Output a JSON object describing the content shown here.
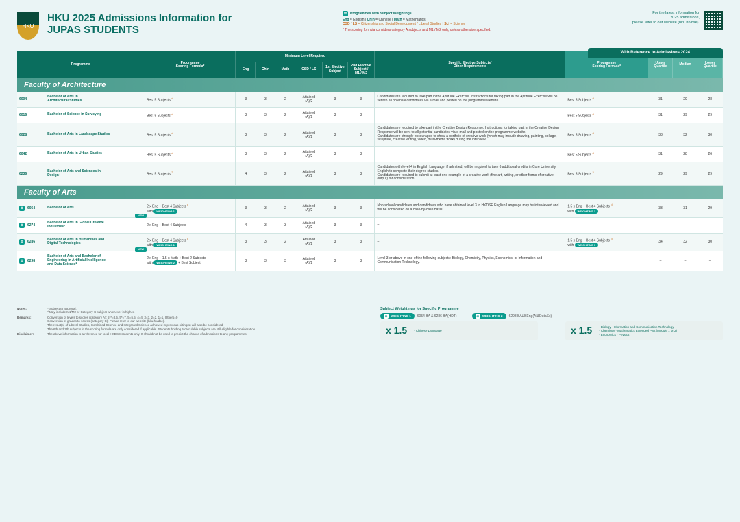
{
  "header": {
    "title_line1": "HKU 2025 Admissions Information for",
    "title_line2": "JUPAS STUDENTS"
  },
  "legend": {
    "pw_label": "Programmes with Subject Weightings",
    "line1_html": "Eng = English | Chin = Chinese | Math = Mathematics",
    "line2_html": "CSD / LS = Citizenship and Social Development / Liberal Studies | Sci = Science",
    "note": "* The scoring formula considers category A subjects and M1 / M2 only, unless otherwise specified."
  },
  "right_info": {
    "l1": "For the latest information for",
    "l2": "2025 admissions,",
    "l3": "please refer to our website (hku.hk/dse)."
  },
  "ref_bar": "With Reference to Admissions 2024",
  "thead": {
    "programme": "Programme",
    "formula": "Programme\nScoring Formula*",
    "mlr": "Minimum Level Required",
    "eng": "Eng",
    "chin": "Chin",
    "math": "Math",
    "csd": "CSD / LS",
    "el1": "1st Elective\nSubject",
    "el2": "2nd Elective\nSubject /\nM1 / M2",
    "spec": "Specific Elective Subjects/\nOther Requirements",
    "formula2": "Programme\nScoring Formula*",
    "uq": "Upper\nQuartile",
    "med": "Median",
    "lq": "Lower\nQuartile"
  },
  "faculties": [
    {
      "name": "Faculty of Architecture",
      "rows": [
        {
          "pw": false,
          "new": false,
          "code": "6004",
          "pname": "Bachelor of Arts in\nArchitectural Studies",
          "formula": "Best 5 Subjects",
          "sup": "d",
          "wb": "",
          "eng": "3",
          "chin": "3",
          "math": "2",
          "csd": "Attained\n(A)/2",
          "e1": "3",
          "e2": "3",
          "req": "Candidates are required to take part in the Aptitude Exercise. Instructions for taking part in the Aptitude Exercise will be sent to all potential candidates via e-mail and posted on the programme website.",
          "formula2": "Best 5 Subjects",
          "sup2": "d",
          "wb2": "",
          "uq": "31",
          "med": "29",
          "lq": "28"
        },
        {
          "pw": false,
          "new": false,
          "code": "6016",
          "pname": "Bachelor of Science in Surveying",
          "formula": "Best 5 Subjects",
          "sup": "d",
          "wb": "",
          "eng": "3",
          "chin": "3",
          "math": "2",
          "csd": "Attained\n(A)/2",
          "e1": "3",
          "e2": "3",
          "req": "–",
          "formula2": "Best 5 Subjects",
          "sup2": "d",
          "wb2": "",
          "uq": "31",
          "med": "29",
          "lq": "29"
        },
        {
          "pw": false,
          "new": false,
          "code": "6028",
          "pname": "Bachelor of Arts in Landscape Studies",
          "formula": "Best 5 Subjects",
          "sup": "d",
          "wb": "",
          "eng": "3",
          "chin": "3",
          "math": "2",
          "csd": "Attained\n(A)/2",
          "e1": "3",
          "e2": "3",
          "req": "Candidates are required to take part in the Creative Design Response. Instructions for taking part in the Creative Design Response will be sent to all potential candidates via e-mail and posted on the programme website.\nCandidates are strongly encouraged to show a portfolio of creative work (which may include drawing, painting, collage, sculpture, creative writing, video, multi-media work) during the interview.",
          "formula2": "Best 5 Subjects",
          "sup2": "d",
          "wb2": "",
          "uq": "33",
          "med": "32",
          "lq": "30"
        },
        {
          "pw": false,
          "new": false,
          "code": "6042",
          "pname": "Bachelor of Arts in Urban Studies",
          "formula": "Best 5 Subjects",
          "sup": "d",
          "wb": "",
          "eng": "3",
          "chin": "3",
          "math": "2",
          "csd": "Attained\n(A)/2",
          "e1": "3",
          "e2": "3",
          "req": "–",
          "formula2": "Best 5 Subjects",
          "sup2": "d",
          "wb2": "",
          "uq": "31",
          "med": "28",
          "lq": "26"
        },
        {
          "pw": false,
          "new": false,
          "code": "6236",
          "pname": "Bachelor of Arts and Sciences in\nDesign+",
          "formula": "Best 5 Subjects",
          "sup": "2",
          "wb": "",
          "eng": "4",
          "chin": "3",
          "math": "2",
          "csd": "Attained\n(A)/2",
          "e1": "3",
          "e2": "3",
          "req": "Candidates with level 4 in English Language, if admitted, will be required to take 6 additional credits in Core University English to complete their degree studies.\nCandidates are required to submit at least one example of a creative work (fine art, writing, or other forms of creative output) for consideration.",
          "formula2": "Best 5 Subjects",
          "sup2": "2",
          "wb2": "",
          "uq": "29",
          "med": "29",
          "lq": "29"
        }
      ]
    },
    {
      "name": "Faculty of Arts",
      "rows": [
        {
          "pw": true,
          "new": false,
          "code": "6054",
          "pname": "Bachelor of Arts",
          "formula": "2 x Eng + Best 4 Subjects",
          "sup": "d",
          "wb": "WEIGHTING 1",
          "eng": "3",
          "chin": "3",
          "math": "2",
          "csd": "Attained\n(A)/2",
          "e1": "3",
          "e2": "3",
          "req": "Non-school candidates and candidates who have obtained level 3 in HKDSE English Language may be interviewed and will be considered on a case-by-case basis.",
          "formula2": "1.5 x Eng + Best 4 Subjects",
          "sup2": "d",
          "wb2": "WEIGHTING 1",
          "uq": "33",
          "med": "31",
          "lq": "29"
        },
        {
          "pw": true,
          "new": true,
          "code": "6274",
          "pname": "Bachelor of Arts in Global Creative\nIndustries*",
          "formula": "2 x Eng + Best 4 Subjects",
          "sup": "",
          "wb": "",
          "eng": "4",
          "chin": "3",
          "math": "3",
          "csd": "Attained\n(A)/2",
          "e1": "3",
          "e2": "3",
          "req": "–",
          "formula2": "",
          "sup2": "",
          "wb2": "",
          "uq": "–",
          "med": "–",
          "lq": "–"
        },
        {
          "pw": true,
          "new": false,
          "code": "6286",
          "pname": "Bachelor of Arts in Humanities and\nDigital Technologies",
          "formula": "2 x Eng + Best 4 Subjects",
          "sup": "d",
          "wb": "WEIGHTING 1",
          "eng": "3",
          "chin": "3",
          "math": "2",
          "csd": "Attained\n(A)/2",
          "e1": "3",
          "e2": "3",
          "req": "–",
          "formula2": "1.5 x Eng + Best 4 Subjects",
          "sup2": "d",
          "wb2": "WEIGHTING 1",
          "uq": "34",
          "med": "32",
          "lq": "30"
        },
        {
          "pw": true,
          "new": true,
          "code": "6298",
          "pname": "Bachelor of Arts and Bachelor of\nEngineering in Artificial Intelligence\nand Data Science*",
          "formula": "2 x Eng + 1.5 x Math + Best 2 Subjects",
          "sup": "",
          "wb": "WEIGHTING 2",
          "wb_suffix": " + Best Subject",
          "eng": "3",
          "chin": "3",
          "math": "3",
          "csd": "Attained\n(A)/2",
          "e1": "3",
          "e2": "3",
          "req": "Level 3 or above in one of the following subjects: Biology, Chemistry, Physics, Economics, or Information and Communication Technology.",
          "formula2": "",
          "sup2": "",
          "wb2": "",
          "uq": "–",
          "med": "–",
          "lq": "–"
        }
      ]
    }
  ],
  "footer": {
    "notes_lab": "Notes:",
    "notes": "* Subject to approval.\nᵈ May include M1/M2 or Category C subject whichever is higher.",
    "remarks_lab": "Remarks:",
    "remarks": "Conversion of levels to scores (category A): 5**=8.5, 5*=7, 5=5.5, 4=4, 3=3, 2=2, 1=1, Others=0\nConversion of grades to scores (category C): Please refer to our website (hku.hk/dse).\nThe result(s) of Liberal Studies, Combined Science and Integrated Science achieved in previous sitting(s) will also be considered.\nThe 6th and 7th subjects in the scoring formula are only considered if applicable. Students holding 5 calculable subjects are still eligible for consideration.",
    "disc_lab": "Disclaimer:",
    "disc": "The above information is a reference for local HKDSE students only. It should not be used to predict the chance of admissions to any programmes.",
    "sw_title": "Subject Weightings for Specific Programme",
    "w1_tag": "WEIGHTING 1",
    "w1_desc": "6054 BA & 6286 BA(HDT)",
    "w2_tag": "WEIGHTING 2",
    "w2_desc": "6298 BA&BEng(AI&DataSc)",
    "x15": "x 1.5",
    "w1_sub": "· Chinese Language",
    "w2_sub": "· Biology      · Information and Communication Technology\n· Chemistry  · Mathematics Extended Part (Module 1 or 2)\n· Economics · Physics"
  },
  "colors": {
    "teal": "#0a6e5e",
    "light_teal": "#2d9c8e",
    "bg": "#eaf4f5",
    "accent": "#0a9c8e",
    "orange": "#c76b1f"
  }
}
